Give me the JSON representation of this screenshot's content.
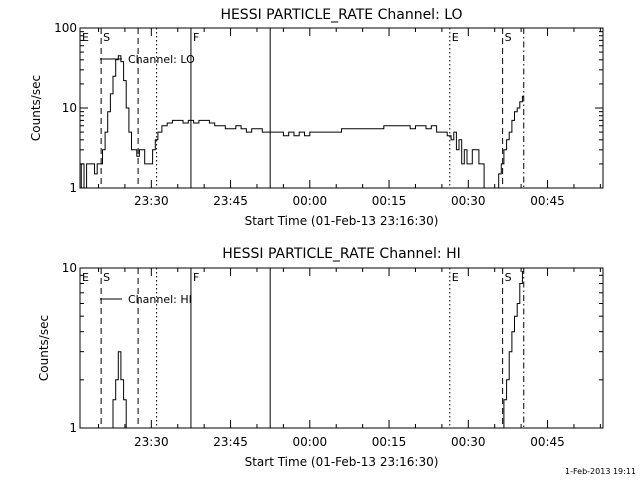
{
  "timestamp": "1-Feb-2013 19:11",
  "chart_data": [
    {
      "type": "line",
      "title": "HESSI PARTICLE_RATE Channel: LO",
      "xlabel": "Start Time (01-Feb-13 23:16:30)",
      "ylabel": "Counts/sec",
      "y_scale": "log",
      "ylim": [
        1,
        100
      ],
      "xlim_minutes": [
        0,
        99
      ],
      "y_ticks": [
        {
          "value": 1,
          "label": "1"
        },
        {
          "value": 10,
          "label": "10"
        },
        {
          "value": 100,
          "label": "100"
        }
      ],
      "x_ticks": [
        {
          "minute": 13.5,
          "label": "23:30"
        },
        {
          "minute": 28.5,
          "label": "23:45"
        },
        {
          "minute": 43.5,
          "label": "00:00"
        },
        {
          "minute": 58.5,
          "label": "00:15"
        },
        {
          "minute": 73.5,
          "label": "00:30"
        },
        {
          "minute": 88.5,
          "label": "00:45"
        }
      ],
      "legend": {
        "label": "Channel: LO",
        "placement": "top-left"
      },
      "markers": [
        {
          "minute": 4,
          "style": "dashed",
          "label": "S"
        },
        {
          "minute": 11,
          "style": "dashed",
          "label": ""
        },
        {
          "minute": 14.5,
          "style": "dotted",
          "label": ""
        },
        {
          "minute": 21,
          "style": "solid",
          "label": "F"
        },
        {
          "minute": 36,
          "style": "solid",
          "label": ""
        },
        {
          "minute": 70,
          "style": "dotted",
          "label": "E"
        },
        {
          "minute": 80,
          "style": "dashed",
          "label": "S"
        },
        {
          "minute": 84,
          "style": "dashdot",
          "label": ""
        }
      ],
      "corner_labels": [
        "E"
      ],
      "series": [
        {
          "x": [
            0,
            0.5,
            1,
            1.5,
            2,
            2.5,
            3,
            3.5,
            4,
            4.5,
            5,
            5.5,
            6,
            6.5,
            7,
            7.5,
            8,
            8.5,
            9,
            9.5,
            10,
            10.5,
            11,
            11.5,
            12,
            12.5,
            13,
            13.5,
            14,
            14.5,
            15,
            16,
            17,
            18,
            19,
            20,
            21,
            22,
            23,
            24,
            25,
            26,
            27,
            28,
            29,
            30,
            31,
            32,
            33,
            34,
            35,
            36,
            37,
            38,
            39,
            40,
            41,
            42,
            43,
            44,
            45,
            46,
            47,
            48,
            49,
            50,
            51,
            52,
            53,
            54,
            55,
            56,
            57,
            58,
            59,
            60,
            61,
            62,
            63,
            64,
            65,
            66,
            67,
            68,
            69,
            70,
            70.5,
            71,
            71.5,
            72,
            72.5,
            73,
            73.5,
            74,
            74.5,
            75,
            76,
            77,
            78,
            78.5,
            79,
            79.5,
            80,
            80.5,
            81,
            81.5,
            82,
            82.5,
            83,
            83.5,
            84
          ],
          "y": [
            1,
            2,
            1,
            2,
            2,
            2,
            1.5,
            2,
            2,
            3,
            5,
            9,
            15,
            25,
            40,
            45,
            38,
            22,
            10,
            5,
            3,
            3,
            2.5,
            3,
            3,
            2,
            2,
            2,
            3,
            4,
            5,
            6,
            6.5,
            7,
            7,
            6.5,
            7,
            6.5,
            7,
            7,
            6.5,
            6,
            6,
            5.5,
            5.5,
            6,
            5.5,
            5,
            5.5,
            5.5,
            5,
            5,
            5,
            5,
            4.5,
            5,
            4.5,
            5,
            4.5,
            5,
            5,
            5,
            5,
            5,
            5,
            5.5,
            5.5,
            5.5,
            5.5,
            5.5,
            5.5,
            5.5,
            5.5,
            6,
            6,
            6,
            6,
            6,
            5.5,
            6,
            6,
            5.5,
            6,
            5,
            5,
            4.5,
            4,
            5,
            3,
            4,
            2,
            3,
            2,
            2,
            3,
            3,
            2,
            1,
            1,
            1,
            1,
            1.5,
            2,
            3,
            4,
            5,
            7,
            9,
            10,
            12,
            14
          ]
        }
      ]
    },
    {
      "type": "line",
      "title": "HESSI PARTICLE_RATE Channel: HI",
      "xlabel": "Start Time (01-Feb-13 23:16:30)",
      "ylabel": "Counts/sec",
      "y_scale": "log",
      "ylim": [
        1,
        10
      ],
      "xlim_minutes": [
        0,
        99
      ],
      "y_ticks": [
        {
          "value": 1,
          "label": "1"
        },
        {
          "value": 10,
          "label": "10"
        }
      ],
      "x_ticks": [
        {
          "minute": 13.5,
          "label": "23:30"
        },
        {
          "minute": 28.5,
          "label": "23:45"
        },
        {
          "minute": 43.5,
          "label": "00:00"
        },
        {
          "minute": 58.5,
          "label": "00:15"
        },
        {
          "minute": 73.5,
          "label": "00:30"
        },
        {
          "minute": 88.5,
          "label": "00:45"
        }
      ],
      "legend": {
        "label": "Channel: HI",
        "placement": "top-left"
      },
      "markers": [
        {
          "minute": 4,
          "style": "dashed",
          "label": "S"
        },
        {
          "minute": 11,
          "style": "dashed",
          "label": ""
        },
        {
          "minute": 14.5,
          "style": "dotted",
          "label": ""
        },
        {
          "minute": 21,
          "style": "solid",
          "label": "F"
        },
        {
          "minute": 36,
          "style": "solid",
          "label": ""
        },
        {
          "minute": 70,
          "style": "dotted",
          "label": "E"
        },
        {
          "minute": 80,
          "style": "dashed",
          "label": "S"
        },
        {
          "minute": 84,
          "style": "dashdot",
          "label": ""
        }
      ],
      "corner_labels": [
        "E"
      ],
      "series": [
        {
          "x": [
            6,
            6.5,
            7,
            7.5,
            8,
            8.5,
            9,
            80,
            80.5,
            81,
            81.5,
            82,
            82.5,
            83,
            83.5,
            84
          ],
          "y": [
            1,
            1.5,
            2,
            3,
            2,
            1.5,
            1,
            1,
            1.5,
            2,
            3,
            4,
            5,
            6,
            8,
            9.5
          ]
        }
      ]
    }
  ]
}
